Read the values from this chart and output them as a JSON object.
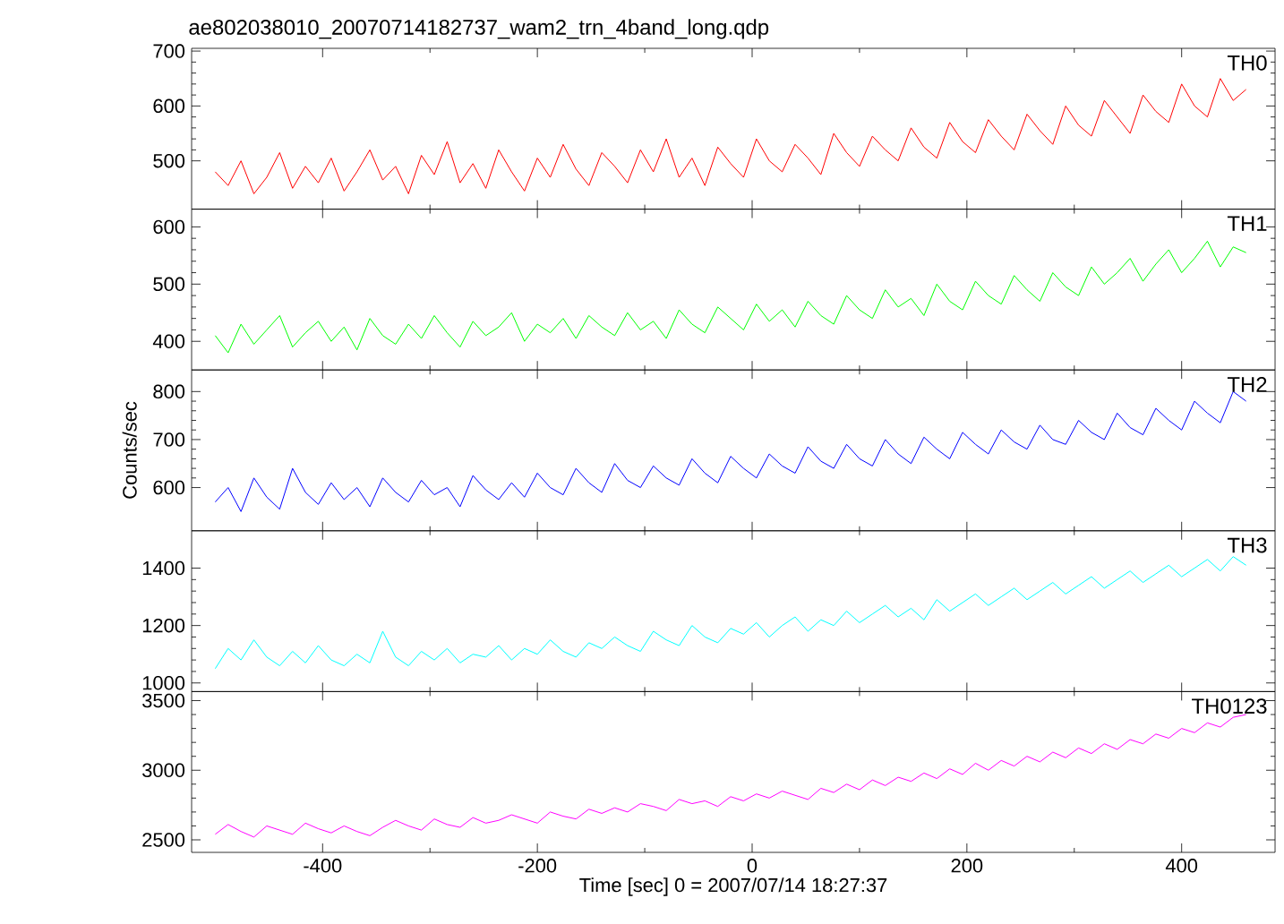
{
  "chart_data": [
    {
      "type": "line",
      "title": "ae802038010_20070714182737_wam2_trn_4band_long.qdp",
      "xlim": [
        -522,
        487
      ],
      "xticks": [
        -400,
        -200,
        0,
        200,
        400
      ],
      "ylim": [
        412,
        705
      ],
      "yticks": [
        500,
        600,
        700
      ],
      "tick_labels": "y",
      "series": [
        {
          "name": "TH0",
          "color": "#ff0000",
          "x": [
            -500,
            -488,
            -476,
            -464,
            -452,
            -440,
            -428,
            -416,
            -404,
            -392,
            -380,
            -368,
            -356,
            -344,
            -332,
            -320,
            -308,
            -296,
            -284,
            -272,
            -260,
            -248,
            -236,
            -224,
            -212,
            -200,
            -188,
            -176,
            -164,
            -152,
            -140,
            -128,
            -116,
            -104,
            -92,
            -80,
            -68,
            -56,
            -44,
            -32,
            -20,
            -8,
            4,
            16,
            28,
            40,
            52,
            64,
            76,
            88,
            100,
            112,
            124,
            136,
            148,
            160,
            172,
            184,
            196,
            208,
            220,
            232,
            244,
            256,
            268,
            280,
            292,
            304,
            316,
            328,
            340,
            352,
            364,
            376,
            388,
            400,
            412,
            424,
            436,
            448,
            460
          ],
          "values": [
            480,
            455,
            500,
            440,
            470,
            515,
            450,
            490,
            460,
            505,
            445,
            480,
            520,
            465,
            490,
            440,
            510,
            475,
            535,
            460,
            495,
            450,
            520,
            480,
            445,
            505,
            470,
            530,
            485,
            455,
            515,
            490,
            460,
            520,
            480,
            540,
            470,
            505,
            455,
            525,
            495,
            470,
            540,
            500,
            480,
            530,
            505,
            475,
            550,
            515,
            490,
            545,
            520,
            500,
            560,
            525,
            505,
            570,
            535,
            515,
            575,
            545,
            520,
            585,
            555,
            530,
            600,
            565,
            545,
            610,
            580,
            550,
            620,
            590,
            570,
            640,
            600,
            580,
            650,
            610,
            630
          ]
        }
      ]
    },
    {
      "type": "line",
      "xlim": [
        -522,
        487
      ],
      "xticks": [
        -400,
        -200,
        0,
        200,
        400
      ],
      "ylim": [
        350,
        631
      ],
      "yticks": [
        400,
        500,
        600
      ],
      "tick_labels": "y",
      "series": [
        {
          "name": "TH1",
          "color": "#00ff00",
          "x": [
            -500,
            -488,
            -476,
            -464,
            -452,
            -440,
            -428,
            -416,
            -404,
            -392,
            -380,
            -368,
            -356,
            -344,
            -332,
            -320,
            -308,
            -296,
            -284,
            -272,
            -260,
            -248,
            -236,
            -224,
            -212,
            -200,
            -188,
            -176,
            -164,
            -152,
            -140,
            -128,
            -116,
            -104,
            -92,
            -80,
            -68,
            -56,
            -44,
            -32,
            -20,
            -8,
            4,
            16,
            28,
            40,
            52,
            64,
            76,
            88,
            100,
            112,
            124,
            136,
            148,
            160,
            172,
            184,
            196,
            208,
            220,
            232,
            244,
            256,
            268,
            280,
            292,
            304,
            316,
            328,
            340,
            352,
            364,
            376,
            388,
            400,
            412,
            424,
            436,
            448,
            460
          ],
          "values": [
            410,
            380,
            430,
            395,
            420,
            445,
            390,
            415,
            435,
            400,
            425,
            385,
            440,
            410,
            395,
            430,
            405,
            445,
            415,
            390,
            435,
            410,
            425,
            450,
            400,
            430,
            415,
            440,
            405,
            445,
            425,
            410,
            450,
            420,
            435,
            405,
            455,
            430,
            415,
            460,
            440,
            420,
            465,
            435,
            455,
            425,
            470,
            445,
            430,
            480,
            455,
            440,
            490,
            460,
            475,
            445,
            500,
            470,
            455,
            505,
            480,
            465,
            515,
            490,
            470,
            520,
            495,
            480,
            530,
            500,
            520,
            545,
            505,
            535,
            560,
            520,
            545,
            575,
            530,
            565,
            555
          ]
        }
      ]
    },
    {
      "type": "line",
      "ylabel": "Counts/sec",
      "xlim": [
        -522,
        487
      ],
      "xticks": [
        -400,
        -200,
        0,
        200,
        400
      ],
      "ylim": [
        510,
        845
      ],
      "yticks": [
        600,
        700,
        800
      ],
      "tick_labels": "y",
      "series": [
        {
          "name": "TH2",
          "color": "#0000ff",
          "x": [
            -500,
            -488,
            -476,
            -464,
            -452,
            -440,
            -428,
            -416,
            -404,
            -392,
            -380,
            -368,
            -356,
            -344,
            -332,
            -320,
            -308,
            -296,
            -284,
            -272,
            -260,
            -248,
            -236,
            -224,
            -212,
            -200,
            -188,
            -176,
            -164,
            -152,
            -140,
            -128,
            -116,
            -104,
            -92,
            -80,
            -68,
            -56,
            -44,
            -32,
            -20,
            -8,
            4,
            16,
            28,
            40,
            52,
            64,
            76,
            88,
            100,
            112,
            124,
            136,
            148,
            160,
            172,
            184,
            196,
            208,
            220,
            232,
            244,
            256,
            268,
            280,
            292,
            304,
            316,
            328,
            340,
            352,
            364,
            376,
            388,
            400,
            412,
            424,
            436,
            448,
            460
          ],
          "values": [
            570,
            600,
            550,
            620,
            580,
            555,
            640,
            590,
            565,
            610,
            575,
            600,
            560,
            620,
            590,
            570,
            615,
            585,
            600,
            560,
            625,
            595,
            575,
            610,
            580,
            630,
            600,
            585,
            640,
            610,
            590,
            650,
            615,
            600,
            645,
            620,
            605,
            660,
            630,
            610,
            665,
            640,
            620,
            670,
            645,
            630,
            685,
            655,
            640,
            690,
            660,
            645,
            700,
            670,
            650,
            705,
            680,
            660,
            715,
            690,
            670,
            720,
            695,
            680,
            730,
            700,
            690,
            740,
            715,
            700,
            755,
            725,
            710,
            765,
            740,
            720,
            780,
            755,
            735,
            800,
            780
          ]
        }
      ]
    },
    {
      "type": "line",
      "xlim": [
        -522,
        487
      ],
      "xticks": [
        -400,
        -200,
        0,
        200,
        400
      ],
      "ylim": [
        970,
        1530
      ],
      "yticks": [
        1000,
        1200,
        1400
      ],
      "tick_labels": "y",
      "series": [
        {
          "name": "TH3",
          "color": "#00ffff",
          "x": [
            -500,
            -488,
            -476,
            -464,
            -452,
            -440,
            -428,
            -416,
            -404,
            -392,
            -380,
            -368,
            -356,
            -344,
            -332,
            -320,
            -308,
            -296,
            -284,
            -272,
            -260,
            -248,
            -236,
            -224,
            -212,
            -200,
            -188,
            -176,
            -164,
            -152,
            -140,
            -128,
            -116,
            -104,
            -92,
            -80,
            -68,
            -56,
            -44,
            -32,
            -20,
            -8,
            4,
            16,
            28,
            40,
            52,
            64,
            76,
            88,
            100,
            112,
            124,
            136,
            148,
            160,
            172,
            184,
            196,
            208,
            220,
            232,
            244,
            256,
            268,
            280,
            292,
            304,
            316,
            328,
            340,
            352,
            364,
            376,
            388,
            400,
            412,
            424,
            436,
            448,
            460
          ],
          "values": [
            1050,
            1120,
            1080,
            1150,
            1090,
            1060,
            1110,
            1070,
            1130,
            1080,
            1060,
            1100,
            1070,
            1180,
            1090,
            1060,
            1110,
            1080,
            1120,
            1070,
            1100,
            1090,
            1130,
            1080,
            1120,
            1100,
            1150,
            1110,
            1090,
            1140,
            1120,
            1160,
            1130,
            1110,
            1180,
            1150,
            1130,
            1200,
            1160,
            1140,
            1190,
            1170,
            1210,
            1160,
            1200,
            1230,
            1180,
            1220,
            1200,
            1250,
            1210,
            1240,
            1270,
            1230,
            1260,
            1220,
            1290,
            1250,
            1280,
            1310,
            1270,
            1300,
            1330,
            1290,
            1320,
            1350,
            1310,
            1340,
            1370,
            1330,
            1360,
            1390,
            1350,
            1380,
            1410,
            1370,
            1400,
            1430,
            1390,
            1440,
            1410
          ]
        }
      ]
    },
    {
      "type": "line",
      "xlabel": "Time [sec] 0 = 2007/07/14 18:27:37",
      "xlim": [
        -522,
        487
      ],
      "xticks": [
        -400,
        -200,
        0,
        200,
        400
      ],
      "ylim": [
        2410,
        3565
      ],
      "yticks": [
        2500,
        3000,
        3500
      ],
      "series": [
        {
          "name": "TH0123",
          "color": "#ff00ff",
          "x": [
            -500,
            -488,
            -476,
            -464,
            -452,
            -440,
            -428,
            -416,
            -404,
            -392,
            -380,
            -368,
            -356,
            -344,
            -332,
            -320,
            -308,
            -296,
            -284,
            -272,
            -260,
            -248,
            -236,
            -224,
            -212,
            -200,
            -188,
            -176,
            -164,
            -152,
            -140,
            -128,
            -116,
            -104,
            -92,
            -80,
            -68,
            -56,
            -44,
            -32,
            -20,
            -8,
            4,
            16,
            28,
            40,
            52,
            64,
            76,
            88,
            100,
            112,
            124,
            136,
            148,
            160,
            172,
            184,
            196,
            208,
            220,
            232,
            244,
            256,
            268,
            280,
            292,
            304,
            316,
            328,
            340,
            352,
            364,
            376,
            388,
            400,
            412,
            424,
            436,
            448,
            460
          ],
          "values": [
            2540,
            2610,
            2560,
            2520,
            2600,
            2570,
            2540,
            2620,
            2580,
            2550,
            2600,
            2560,
            2530,
            2590,
            2640,
            2600,
            2570,
            2650,
            2610,
            2590,
            2660,
            2620,
            2640,
            2680,
            2650,
            2620,
            2700,
            2670,
            2650,
            2720,
            2690,
            2730,
            2700,
            2760,
            2740,
            2710,
            2790,
            2760,
            2780,
            2740,
            2810,
            2780,
            2830,
            2800,
            2850,
            2820,
            2790,
            2870,
            2840,
            2900,
            2860,
            2930,
            2890,
            2950,
            2920,
            2980,
            2940,
            3010,
            2970,
            3050,
            3000,
            3070,
            3030,
            3100,
            3060,
            3130,
            3090,
            3160,
            3120,
            3190,
            3150,
            3220,
            3190,
            3260,
            3230,
            3300,
            3270,
            3340,
            3310,
            3380,
            3400
          ]
        }
      ]
    }
  ]
}
